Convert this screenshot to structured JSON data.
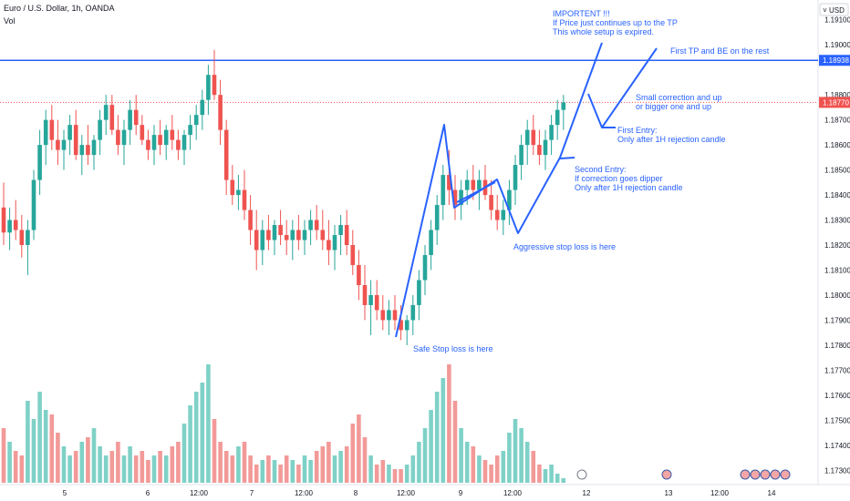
{
  "header": {
    "title": "Euro / U.S. Dollar, 1h, OANDA",
    "volume_label": "Vol"
  },
  "currency_button": "USD",
  "chart_data": {
    "type": "candlestick",
    "symbol": "EURUSD",
    "timeframe": "1h",
    "ylim": [
      1.1725,
      1.1915
    ],
    "y_ticks": [
      "1.19100",
      "1.19000",
      "1.18800",
      "1.18700",
      "1.18600",
      "1.18500",
      "1.18400",
      "1.18300",
      "1.18200",
      "1.18100",
      "1.18000",
      "1.17900",
      "1.17800",
      "1.17700",
      "1.17600",
      "1.17500",
      "1.17400",
      "1.17300"
    ],
    "y_tick_values": [
      1.191,
      1.19,
      1.188,
      1.187,
      1.186,
      1.185,
      1.184,
      1.183,
      1.182,
      1.181,
      1.18,
      1.179,
      1.178,
      1.177,
      1.176,
      1.175,
      1.174,
      1.173
    ],
    "x_labels": [
      "5",
      "6",
      "12:00",
      "7",
      "12:00",
      "8",
      "12:00",
      "9",
      "12:00",
      "12",
      "13",
      "12:00",
      "14"
    ],
    "levels": [
      {
        "price": 1.18938,
        "label": "1.18938",
        "style": "solid"
      },
      {
        "price": 1.1877,
        "label": "1.18770",
        "style": "dotted"
      }
    ],
    "candles": [
      [
        1.1835,
        1.1845,
        1.182,
        1.1825
      ],
      [
        1.1825,
        1.1835,
        1.1818,
        1.183
      ],
      [
        1.183,
        1.1838,
        1.1822,
        1.1826
      ],
      [
        1.1826,
        1.1832,
        1.1815,
        1.182
      ],
      [
        1.182,
        1.183,
        1.1808,
        1.1826
      ],
      [
        1.1826,
        1.185,
        1.1822,
        1.1846
      ],
      [
        1.1846,
        1.1866,
        1.184,
        1.186
      ],
      [
        1.186,
        1.1874,
        1.1852,
        1.187
      ],
      [
        1.187,
        1.1876,
        1.1858,
        1.1862
      ],
      [
        1.1862,
        1.187,
        1.1852,
        1.1858
      ],
      [
        1.1858,
        1.1866,
        1.185,
        1.1862
      ],
      [
        1.1862,
        1.1872,
        1.1856,
        1.1868
      ],
      [
        1.1868,
        1.1874,
        1.1854,
        1.1856
      ],
      [
        1.1856,
        1.1864,
        1.1848,
        1.186
      ],
      [
        1.186,
        1.1868,
        1.1852,
        1.1856
      ],
      [
        1.1856,
        1.1864,
        1.185,
        1.1862
      ],
      [
        1.1862,
        1.1874,
        1.1856,
        1.187
      ],
      [
        1.187,
        1.188,
        1.1864,
        1.1876
      ],
      [
        1.1876,
        1.188,
        1.1864,
        1.1866
      ],
      [
        1.1866,
        1.1872,
        1.1856,
        1.186
      ],
      [
        1.186,
        1.187,
        1.1852,
        1.1866
      ],
      [
        1.1866,
        1.1878,
        1.186,
        1.1874
      ],
      [
        1.1874,
        1.188,
        1.1864,
        1.1868
      ],
      [
        1.1868,
        1.1872,
        1.186,
        1.1862
      ],
      [
        1.1862,
        1.1866,
        1.1854,
        1.1858
      ],
      [
        1.1858,
        1.1868,
        1.1852,
        1.1864
      ],
      [
        1.1864,
        1.187,
        1.1856,
        1.186
      ],
      [
        1.186,
        1.1868,
        1.1854,
        1.1866
      ],
      [
        1.1866,
        1.1872,
        1.1858,
        1.1862
      ],
      [
        1.1862,
        1.1866,
        1.1854,
        1.1858
      ],
      [
        1.1858,
        1.1866,
        1.1852,
        1.1864
      ],
      [
        1.1864,
        1.1872,
        1.1858,
        1.1868
      ],
      [
        1.1868,
        1.1876,
        1.1862,
        1.1872
      ],
      [
        1.1872,
        1.1882,
        1.1866,
        1.1878
      ],
      [
        1.1878,
        1.1892,
        1.1872,
        1.1888
      ],
      [
        1.1888,
        1.1898,
        1.1878,
        1.188
      ],
      [
        1.188,
        1.1886,
        1.186,
        1.1866
      ],
      [
        1.1866,
        1.187,
        1.184,
        1.1846
      ],
      [
        1.1846,
        1.1852,
        1.1836,
        1.184
      ],
      [
        1.184,
        1.1848,
        1.1834,
        1.1842
      ],
      [
        1.1842,
        1.185,
        1.183,
        1.1834
      ],
      [
        1.1834,
        1.184,
        1.182,
        1.1826
      ],
      [
        1.1826,
        1.1834,
        1.181,
        1.1818
      ],
      [
        1.1818,
        1.183,
        1.1812,
        1.1826
      ],
      [
        1.1826,
        1.1832,
        1.1818,
        1.1822
      ],
      [
        1.1822,
        1.183,
        1.1816,
        1.1828
      ],
      [
        1.1828,
        1.1834,
        1.182,
        1.1824
      ],
      [
        1.1824,
        1.183,
        1.1816,
        1.1822
      ],
      [
        1.1822,
        1.183,
        1.1814,
        1.1826
      ],
      [
        1.1826,
        1.1832,
        1.1818,
        1.1822
      ],
      [
        1.1822,
        1.183,
        1.1816,
        1.1826
      ],
      [
        1.1826,
        1.1834,
        1.182,
        1.183
      ],
      [
        1.183,
        1.1836,
        1.1822,
        1.1826
      ],
      [
        1.1826,
        1.1834,
        1.1818,
        1.1822
      ],
      [
        1.1822,
        1.183,
        1.1812,
        1.1818
      ],
      [
        1.1818,
        1.1828,
        1.181,
        1.1824
      ],
      [
        1.1824,
        1.1832,
        1.1816,
        1.1828
      ],
      [
        1.1828,
        1.1834,
        1.1816,
        1.182
      ],
      [
        1.182,
        1.1826,
        1.1808,
        1.1812
      ],
      [
        1.1812,
        1.1818,
        1.1798,
        1.1804
      ],
      [
        1.1804,
        1.1812,
        1.179,
        1.1796
      ],
      [
        1.1796,
        1.1806,
        1.1784,
        1.18
      ],
      [
        1.18,
        1.1806,
        1.179,
        1.1794
      ],
      [
        1.1794,
        1.18,
        1.1786,
        1.179
      ],
      [
        1.179,
        1.1798,
        1.1784,
        1.1794
      ],
      [
        1.1794,
        1.18,
        1.1786,
        1.179
      ],
      [
        1.179,
        1.1796,
        1.1782,
        1.1786
      ],
      [
        1.1786,
        1.1792,
        1.178,
        1.179
      ],
      [
        1.179,
        1.18,
        1.1784,
        1.1796
      ],
      [
        1.1796,
        1.181,
        1.179,
        1.1806
      ],
      [
        1.1806,
        1.182,
        1.18,
        1.1816
      ],
      [
        1.1816,
        1.183,
        1.181,
        1.1826
      ],
      [
        1.1826,
        1.184,
        1.182,
        1.1836
      ],
      [
        1.1836,
        1.1852,
        1.183,
        1.1848
      ],
      [
        1.1848,
        1.1858,
        1.1836,
        1.1842
      ],
      [
        1.1842,
        1.1848,
        1.183,
        1.1836
      ],
      [
        1.1836,
        1.1846,
        1.183,
        1.1842
      ],
      [
        1.1842,
        1.185,
        1.1836,
        1.1846
      ],
      [
        1.1846,
        1.1852,
        1.1838,
        1.1842
      ],
      [
        1.1842,
        1.185,
        1.1834,
        1.1846
      ],
      [
        1.1846,
        1.1852,
        1.1838,
        1.184
      ],
      [
        1.184,
        1.1846,
        1.183,
        1.1834
      ],
      [
        1.1834,
        1.184,
        1.1826,
        1.183
      ],
      [
        1.183,
        1.1838,
        1.1824,
        1.1834
      ],
      [
        1.1834,
        1.1846,
        1.1828,
        1.1842
      ],
      [
        1.1842,
        1.1856,
        1.1836,
        1.1852
      ],
      [
        1.1852,
        1.1864,
        1.1846,
        1.186
      ],
      [
        1.186,
        1.187,
        1.1852,
        1.1866
      ],
      [
        1.1866,
        1.1872,
        1.1856,
        1.186
      ],
      [
        1.186,
        1.1866,
        1.1852,
        1.1856
      ],
      [
        1.1856,
        1.1866,
        1.185,
        1.1862
      ],
      [
        1.1862,
        1.1872,
        1.1856,
        1.1868
      ],
      [
        1.1868,
        1.1878,
        1.1862,
        1.1874
      ],
      [
        1.1874,
        1.188,
        1.1866,
        1.1877
      ]
    ],
    "volumes": [
      120,
      90,
      70,
      60,
      180,
      140,
      200,
      160,
      150,
      110,
      80,
      60,
      70,
      90,
      100,
      120,
      80,
      60,
      70,
      90,
      60,
      80,
      60,
      70,
      50,
      60,
      70,
      60,
      80,
      90,
      130,
      170,
      200,
      220,
      260,
      140,
      90,
      70,
      60,
      80,
      90,
      60,
      40,
      50,
      60,
      50,
      40,
      60,
      50,
      40,
      60,
      50,
      70,
      80,
      90,
      60,
      70,
      80,
      130,
      150,
      100,
      60,
      40,
      50,
      40,
      30,
      30,
      40,
      60,
      90,
      120,
      160,
      200,
      230,
      260,
      180,
      120,
      90,
      80,
      60,
      50,
      40,
      60,
      70,
      110,
      140,
      120,
      90,
      70,
      40,
      30,
      40,
      20,
      10
    ]
  },
  "annotations": {
    "important": "IMPORTENT !!!\nIf Price just continues up to the TP\nThis whole setup is expired.",
    "first_tp": "First TP and BE on the rest",
    "small_correction": "Small correction and up\nor bigger one and up",
    "first_entry": "First Entry:\nOnly after 1H rejection candle",
    "second_entry": "Second Entry:\nIf correction goes dipper\nOnly after 1H rejection candle",
    "aggressive_stop": "Aggressive stop loss is here",
    "safe_stop": "Safe Stop loss is here"
  },
  "colors": {
    "up": "#26a69a",
    "down": "#ef5350",
    "up_volume": "#7fd1c7",
    "down_volume": "#f29a98",
    "drawing": "#2962ff",
    "level": "#2962ff",
    "current_price": "#ef5350"
  }
}
